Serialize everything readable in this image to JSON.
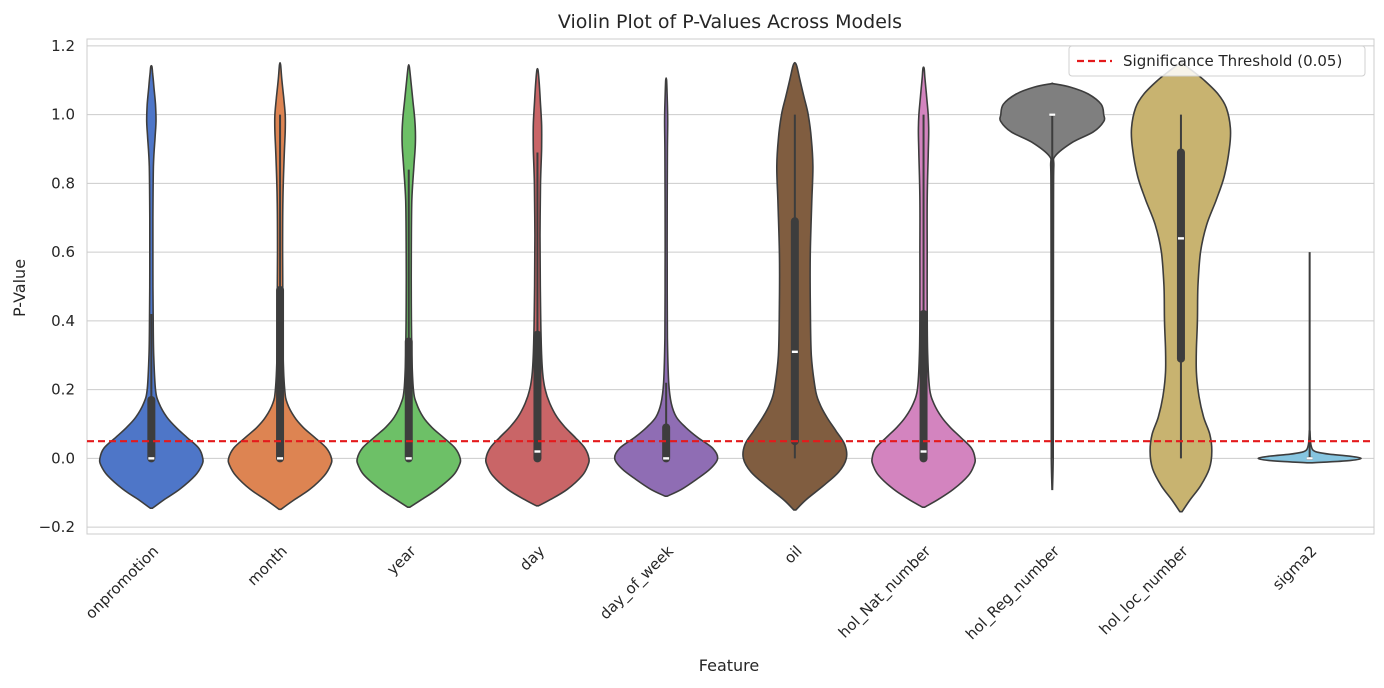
{
  "chart_data": {
    "type": "violin",
    "title": "Violin Plot of P-Values Across Models",
    "xlabel": "Feature",
    "ylabel": "P-Value",
    "ylim": [
      -0.22,
      1.22
    ],
    "yticks": [
      -0.2,
      0.0,
      0.2,
      0.4,
      0.6,
      0.8,
      1.0,
      1.2
    ],
    "grid": true,
    "legend_position": "top-right",
    "threshold": {
      "value": 0.05,
      "label": "Significance Threshold (0.05)",
      "color": "#e41a1c",
      "style": "dashed"
    },
    "categories": [
      "onpromotion",
      "month",
      "year",
      "day",
      "day_of_week",
      "oil",
      "hol_Nat_number",
      "hol_Reg_number",
      "hol_loc_number",
      "sigma2"
    ],
    "series": [
      {
        "category": "onpromotion",
        "color": "#4e76c8",
        "median": 0.0,
        "q1": 0.0,
        "q3": 0.17,
        "whisker_low": 0.0,
        "whisker_high": 0.42,
        "density": [
          [
            -0.145,
            0.02
          ],
          [
            -0.12,
            0.25
          ],
          [
            -0.09,
            0.55
          ],
          [
            -0.05,
            0.85
          ],
          [
            -0.02,
            0.98
          ],
          [
            0.0,
            1.0
          ],
          [
            0.03,
            0.92
          ],
          [
            0.06,
            0.7
          ],
          [
            0.09,
            0.48
          ],
          [
            0.12,
            0.3
          ],
          [
            0.16,
            0.15
          ],
          [
            0.2,
            0.08
          ],
          [
            0.3,
            0.045
          ],
          [
            0.4,
            0.035
          ],
          [
            0.55,
            0.03
          ],
          [
            0.7,
            0.03
          ],
          [
            0.85,
            0.04
          ],
          [
            0.93,
            0.07
          ],
          [
            0.98,
            0.09
          ],
          [
            1.03,
            0.08
          ],
          [
            1.08,
            0.05
          ],
          [
            1.12,
            0.025
          ],
          [
            1.14,
            0.01
          ]
        ]
      },
      {
        "category": "month",
        "color": "#dd8452",
        "median": 0.0,
        "q1": 0.0,
        "q3": 0.49,
        "whisker_low": 0.0,
        "whisker_high": 1.0,
        "density": [
          [
            -0.148,
            0.02
          ],
          [
            -0.12,
            0.28
          ],
          [
            -0.09,
            0.58
          ],
          [
            -0.05,
            0.86
          ],
          [
            -0.02,
            0.98
          ],
          [
            0.0,
            1.0
          ],
          [
            0.03,
            0.9
          ],
          [
            0.06,
            0.68
          ],
          [
            0.09,
            0.45
          ],
          [
            0.12,
            0.28
          ],
          [
            0.16,
            0.14
          ],
          [
            0.2,
            0.09
          ],
          [
            0.3,
            0.06
          ],
          [
            0.45,
            0.055
          ],
          [
            0.6,
            0.05
          ],
          [
            0.75,
            0.055
          ],
          [
            0.88,
            0.08
          ],
          [
            0.95,
            0.1
          ],
          [
            1.0,
            0.1
          ],
          [
            1.05,
            0.07
          ],
          [
            1.1,
            0.035
          ],
          [
            1.145,
            0.01
          ]
        ]
      },
      {
        "category": "year",
        "color": "#6dc067",
        "median": 0.0,
        "q1": 0.0,
        "q3": 0.34,
        "whisker_low": 0.0,
        "whisker_high": 0.84,
        "density": [
          [
            -0.142,
            0.02
          ],
          [
            -0.12,
            0.25
          ],
          [
            -0.09,
            0.55
          ],
          [
            -0.05,
            0.86
          ],
          [
            -0.02,
            0.98
          ],
          [
            0.0,
            1.0
          ],
          [
            0.03,
            0.9
          ],
          [
            0.06,
            0.68
          ],
          [
            0.09,
            0.45
          ],
          [
            0.12,
            0.28
          ],
          [
            0.16,
            0.15
          ],
          [
            0.2,
            0.09
          ],
          [
            0.3,
            0.06
          ],
          [
            0.45,
            0.05
          ],
          [
            0.6,
            0.05
          ],
          [
            0.75,
            0.06
          ],
          [
            0.85,
            0.1
          ],
          [
            0.92,
            0.13
          ],
          [
            0.98,
            0.12
          ],
          [
            1.04,
            0.08
          ],
          [
            1.1,
            0.04
          ],
          [
            1.14,
            0.01
          ]
        ]
      },
      {
        "category": "day",
        "color": "#c96567",
        "median": 0.02,
        "q1": 0.0,
        "q3": 0.36,
        "whisker_low": 0.0,
        "whisker_high": 0.89,
        "density": [
          [
            -0.138,
            0.02
          ],
          [
            -0.12,
            0.25
          ],
          [
            -0.09,
            0.58
          ],
          [
            -0.05,
            0.87
          ],
          [
            -0.02,
            0.98
          ],
          [
            0.0,
            1.0
          ],
          [
            0.03,
            0.92
          ],
          [
            0.06,
            0.74
          ],
          [
            0.09,
            0.54
          ],
          [
            0.12,
            0.38
          ],
          [
            0.16,
            0.24
          ],
          [
            0.2,
            0.15
          ],
          [
            0.25,
            0.1
          ],
          [
            0.35,
            0.07
          ],
          [
            0.5,
            0.055
          ],
          [
            0.65,
            0.05
          ],
          [
            0.8,
            0.06
          ],
          [
            0.9,
            0.08
          ],
          [
            0.97,
            0.08
          ],
          [
            1.04,
            0.055
          ],
          [
            1.1,
            0.03
          ],
          [
            1.13,
            0.01
          ]
        ]
      },
      {
        "category": "day_of_week",
        "color": "#8f6db4",
        "median": 0.0,
        "q1": 0.0,
        "q3": 0.09,
        "whisker_low": 0.0,
        "whisker_high": 0.22,
        "density": [
          [
            -0.11,
            0.02
          ],
          [
            -0.09,
            0.3
          ],
          [
            -0.06,
            0.6
          ],
          [
            -0.03,
            0.86
          ],
          [
            0.0,
            1.0
          ],
          [
            0.03,
            0.9
          ],
          [
            0.06,
            0.62
          ],
          [
            0.09,
            0.38
          ],
          [
            0.12,
            0.2
          ],
          [
            0.16,
            0.1
          ],
          [
            0.22,
            0.05
          ],
          [
            0.35,
            0.025
          ],
          [
            0.55,
            0.02
          ],
          [
            0.75,
            0.02
          ],
          [
            0.9,
            0.025
          ],
          [
            0.98,
            0.03
          ],
          [
            1.05,
            0.02
          ],
          [
            1.1,
            0.008
          ]
        ]
      },
      {
        "category": "oil",
        "color": "#805d40",
        "median": 0.31,
        "q1": 0.05,
        "q3": 0.69,
        "whisker_low": 0.0,
        "whisker_high": 1.0,
        "density": [
          [
            -0.15,
            0.02
          ],
          [
            -0.12,
            0.22
          ],
          [
            -0.08,
            0.55
          ],
          [
            -0.04,
            0.85
          ],
          [
            0.0,
            1.0
          ],
          [
            0.04,
            0.97
          ],
          [
            0.08,
            0.8
          ],
          [
            0.12,
            0.62
          ],
          [
            0.16,
            0.48
          ],
          [
            0.2,
            0.4
          ],
          [
            0.3,
            0.32
          ],
          [
            0.45,
            0.3
          ],
          [
            0.6,
            0.3
          ],
          [
            0.75,
            0.33
          ],
          [
            0.85,
            0.35
          ],
          [
            0.93,
            0.32
          ],
          [
            1.0,
            0.26
          ],
          [
            1.05,
            0.18
          ],
          [
            1.1,
            0.1
          ],
          [
            1.14,
            0.04
          ],
          [
            1.15,
            0.01
          ]
        ]
      },
      {
        "category": "hol_Nat_number",
        "color": "#d384bf",
        "median": 0.02,
        "q1": 0.0,
        "q3": 0.42,
        "whisker_low": 0.0,
        "whisker_high": 1.0,
        "density": [
          [
            -0.142,
            0.02
          ],
          [
            -0.12,
            0.28
          ],
          [
            -0.09,
            0.58
          ],
          [
            -0.05,
            0.87
          ],
          [
            -0.02,
            0.98
          ],
          [
            0.0,
            1.0
          ],
          [
            0.03,
            0.93
          ],
          [
            0.06,
            0.73
          ],
          [
            0.09,
            0.52
          ],
          [
            0.12,
            0.35
          ],
          [
            0.16,
            0.2
          ],
          [
            0.2,
            0.12
          ],
          [
            0.3,
            0.08
          ],
          [
            0.45,
            0.07
          ],
          [
            0.6,
            0.07
          ],
          [
            0.75,
            0.07
          ],
          [
            0.88,
            0.09
          ],
          [
            0.95,
            0.1
          ],
          [
            1.0,
            0.09
          ],
          [
            1.06,
            0.055
          ],
          [
            1.11,
            0.025
          ],
          [
            1.135,
            0.01
          ]
        ]
      },
      {
        "category": "hol_Reg_number",
        "color": "#7f7f7f",
        "median": 1.0,
        "q1": 1.0,
        "q3": 1.0,
        "whisker_low": 0.0,
        "whisker_high": 1.0,
        "density": [
          [
            -0.09,
            0.005
          ],
          [
            0.0,
            0.018
          ],
          [
            0.2,
            0.02
          ],
          [
            0.5,
            0.022
          ],
          [
            0.75,
            0.025
          ],
          [
            0.85,
            0.03
          ],
          [
            0.88,
            0.06
          ],
          [
            0.92,
            0.4
          ],
          [
            0.95,
            0.8
          ],
          [
            0.98,
            1.0
          ],
          [
            1.0,
            1.0
          ],
          [
            1.03,
            0.95
          ],
          [
            1.06,
            0.7
          ],
          [
            1.08,
            0.35
          ],
          [
            1.09,
            0.02
          ]
        ]
      },
      {
        "category": "hol_loc_number",
        "color": "#c8b370",
        "median": 0.64,
        "q1": 0.29,
        "q3": 0.89,
        "whisker_low": 0.0,
        "whisker_high": 1.0,
        "density": [
          [
            -0.155,
            0.02
          ],
          [
            -0.12,
            0.18
          ],
          [
            -0.08,
            0.38
          ],
          [
            -0.03,
            0.55
          ],
          [
            0.02,
            0.6
          ],
          [
            0.07,
            0.56
          ],
          [
            0.12,
            0.44
          ],
          [
            0.18,
            0.35
          ],
          [
            0.25,
            0.3
          ],
          [
            0.32,
            0.3
          ],
          [
            0.4,
            0.32
          ],
          [
            0.5,
            0.33
          ],
          [
            0.6,
            0.38
          ],
          [
            0.68,
            0.5
          ],
          [
            0.75,
            0.68
          ],
          [
            0.82,
            0.84
          ],
          [
            0.9,
            0.94
          ],
          [
            0.96,
            0.96
          ],
          [
            1.02,
            0.88
          ],
          [
            1.06,
            0.72
          ],
          [
            1.1,
            0.45
          ],
          [
            1.13,
            0.2
          ],
          [
            1.15,
            0.02
          ]
        ]
      },
      {
        "category": "sigma2",
        "color": "#86c5e0",
        "median": 0.0,
        "q1": 0.0,
        "q3": 0.0,
        "whisker_low": 0.0,
        "whisker_high": 0.6,
        "density": [
          [
            -0.013,
            0.02
          ],
          [
            -0.01,
            0.4
          ],
          [
            -0.006,
            0.8
          ],
          [
            0.0,
            1.0
          ],
          [
            0.006,
            0.8
          ],
          [
            0.012,
            0.4
          ],
          [
            0.018,
            0.15
          ],
          [
            0.025,
            0.06
          ],
          [
            0.04,
            0.025
          ],
          [
            0.06,
            0.012
          ],
          [
            0.08,
            0.004
          ]
        ]
      }
    ]
  }
}
